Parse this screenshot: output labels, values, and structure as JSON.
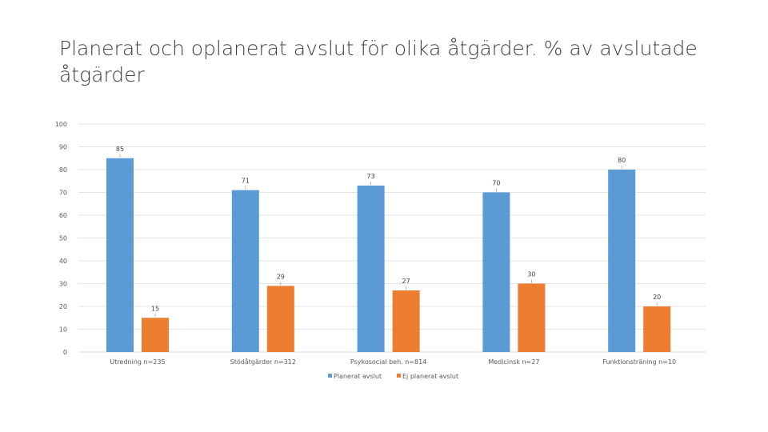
{
  "slide": {
    "title": "Planerat och oplanerat avslut för olika åtgärder. % av avslutade åtgärder"
  },
  "chart_data": {
    "type": "bar",
    "categories": [
      "Utredning n=235",
      "Stödåtgärder n=312",
      "Psykosocial beh. n=814",
      "Medicinsk n=27",
      "Funktionsträning n=10"
    ],
    "series": [
      {
        "name": "Planerat avslut",
        "values": [
          85,
          71,
          73,
          70,
          80
        ],
        "color": "#5B9BD5"
      },
      {
        "name": "Ej planerat avslut",
        "values": [
          15,
          29,
          27,
          30,
          20
        ],
        "color": "#ED7D31"
      }
    ],
    "yticks": [
      0,
      10,
      20,
      30,
      40,
      50,
      60,
      70,
      80,
      90,
      100
    ],
    "ylim": [
      0,
      100
    ],
    "grid": true,
    "legend": "bottom",
    "data_labels": true
  }
}
